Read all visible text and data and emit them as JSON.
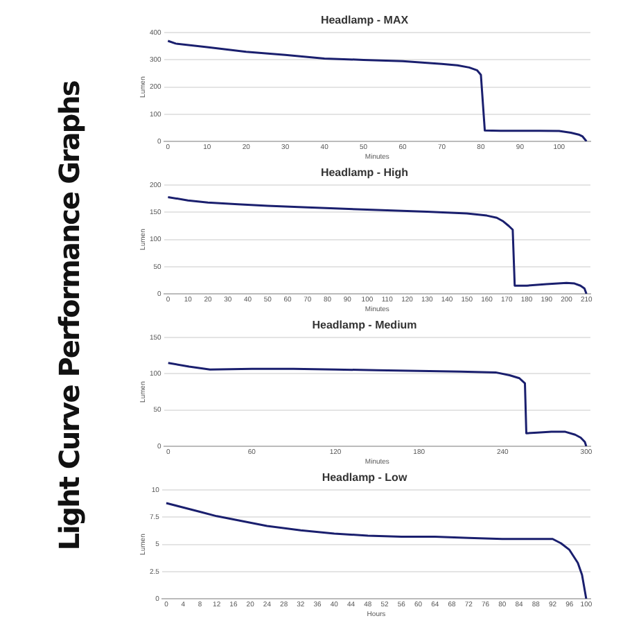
{
  "chart_data": [
    {
      "type": "other",
      "title": "Light Curve Performance Graphs"
    },
    {
      "type": "line",
      "title": "Headlamp - MAX",
      "xlabel": "Minutes",
      "ylabel": "Lumen",
      "xlim": [
        -1,
        108
      ],
      "xticks": [
        0,
        10,
        20,
        30,
        40,
        50,
        60,
        70,
        80,
        90,
        100
      ],
      "ylim": [
        0,
        400
      ],
      "yticks": [
        0,
        100,
        200,
        300,
        400
      ],
      "grid": "y",
      "marker": "none",
      "series": [
        {
          "color": "#1a1f6e",
          "x": [
            0,
            2,
            10,
            20,
            30,
            40,
            50,
            60,
            70,
            74,
            77,
            79,
            80,
            81,
            85,
            95,
            100,
            103,
            105,
            106,
            107
          ],
          "values": [
            370,
            360,
            347,
            330,
            318,
            305,
            300,
            295,
            285,
            280,
            272,
            262,
            245,
            40,
            39,
            39,
            38,
            32,
            25,
            18,
            0
          ]
        }
      ]
    },
    {
      "type": "line",
      "title": "Headlamp - High",
      "xlabel": "Minutes",
      "ylabel": "Lumen",
      "xlim": [
        -2,
        212
      ],
      "xticks": [
        0,
        10,
        20,
        30,
        40,
        50,
        60,
        70,
        80,
        90,
        100,
        110,
        120,
        130,
        140,
        150,
        160,
        170,
        180,
        190,
        200,
        210
      ],
      "ylim": [
        0,
        200
      ],
      "yticks": [
        0,
        50,
        100,
        150,
        200
      ],
      "grid": "y",
      "marker": "none",
      "series": [
        {
          "color": "#1a1f6e",
          "x": [
            0,
            10,
            20,
            35,
            50,
            70,
            100,
            130,
            150,
            160,
            165,
            168,
            171,
            173,
            174,
            180,
            190,
            200,
            204,
            207,
            209,
            210
          ],
          "values": [
            178,
            172,
            168,
            165,
            162,
            159,
            155,
            151,
            148,
            144,
            140,
            134,
            125,
            118,
            15,
            15,
            18,
            20,
            19,
            15,
            10,
            0
          ]
        }
      ]
    },
    {
      "type": "line",
      "title": "Headlamp - Medium",
      "xlabel": "Minutes",
      "ylabel": "Lumen",
      "xlim": [
        -3,
        303
      ],
      "xticks": [
        0,
        60,
        120,
        180,
        240,
        300
      ],
      "ylim": [
        0,
        150
      ],
      "yticks": [
        0,
        50,
        100,
        150
      ],
      "grid": "y",
      "marker": "none",
      "series": [
        {
          "color": "#1a1f6e",
          "x": [
            0,
            15,
            30,
            60,
            90,
            120,
            150,
            180,
            210,
            235,
            245,
            252,
            256,
            257,
            265,
            275,
            285,
            292,
            296,
            299,
            300
          ],
          "values": [
            115,
            110,
            106,
            107,
            107,
            106,
            105,
            104,
            103,
            102,
            98,
            94,
            87,
            18,
            19,
            20,
            20,
            16,
            12,
            6,
            0
          ]
        }
      ]
    },
    {
      "type": "line",
      "title": "Headlamp - Low",
      "xlabel": "Hours",
      "ylabel": "Lumen",
      "xlim": [
        -1,
        101
      ],
      "xticks": [
        0,
        4,
        8,
        12,
        16,
        20,
        24,
        28,
        32,
        36,
        40,
        44,
        48,
        52,
        56,
        60,
        64,
        68,
        72,
        76,
        80,
        84,
        88,
        92,
        96,
        100
      ],
      "ylim": [
        0,
        10
      ],
      "yticks": [
        0,
        2.5,
        5,
        7.5,
        10
      ],
      "grid": "y",
      "marker": "none",
      "series": [
        {
          "color": "#1a1f6e",
          "x": [
            0,
            4,
            8,
            12,
            16,
            20,
            24,
            32,
            40,
            48,
            56,
            64,
            72,
            80,
            88,
            92,
            94,
            96,
            98,
            99,
            100
          ],
          "values": [
            8.8,
            8.4,
            8.0,
            7.6,
            7.3,
            7.0,
            6.7,
            6.3,
            6.0,
            5.8,
            5.7,
            5.7,
            5.6,
            5.5,
            5.5,
            5.5,
            5.1,
            4.5,
            3.3,
            2.2,
            0
          ]
        }
      ]
    }
  ]
}
